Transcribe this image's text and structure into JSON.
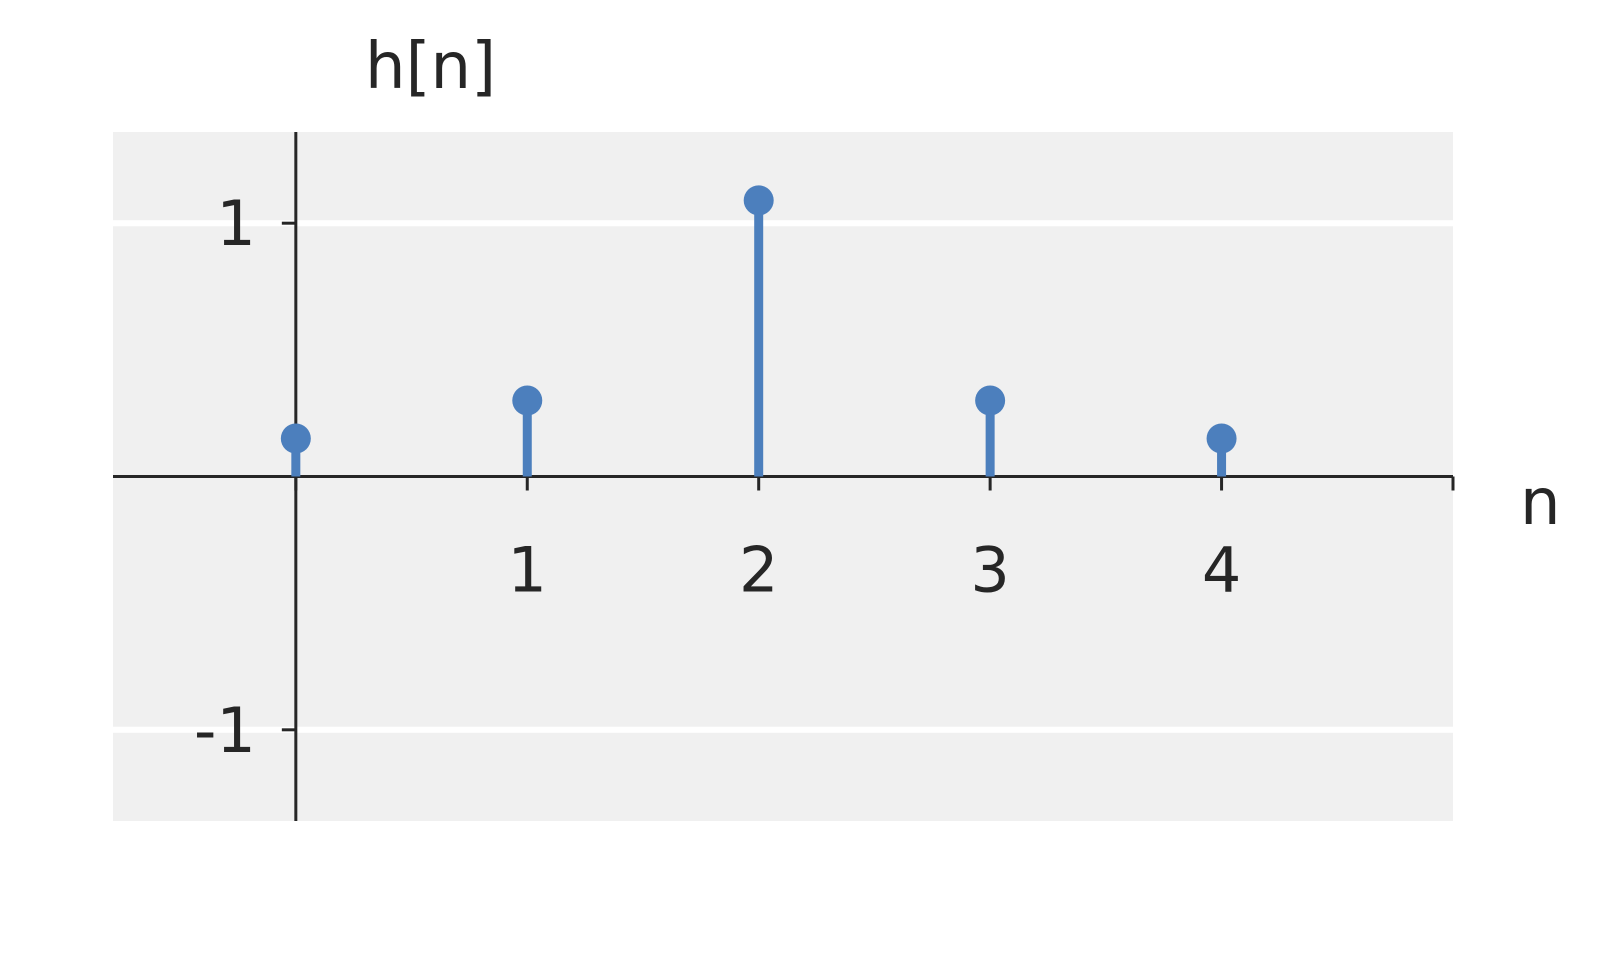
{
  "chart_data": {
    "type": "stem",
    "title": "",
    "xlabel": "n",
    "ylabel": "h[n]",
    "x": [
      0,
      1,
      2,
      3,
      4
    ],
    "values": [
      0.15,
      0.3,
      1.09,
      0.3,
      0.15
    ],
    "xticks": [
      1,
      2,
      3,
      4
    ],
    "xtick_labels": [
      "1",
      "2",
      "3",
      "4"
    ],
    "yticks": [
      1,
      -1
    ],
    "ytick_labels": [
      "1",
      "-1"
    ],
    "xlim": [
      -0.79,
      5
    ],
    "ylim": [
      -1.36,
      1.36
    ],
    "grid": "horizontal",
    "colors": {
      "stem": "#4c7fbd",
      "background": "#f0f0f0",
      "axis": "#262626",
      "grid": "#ffffff"
    }
  }
}
